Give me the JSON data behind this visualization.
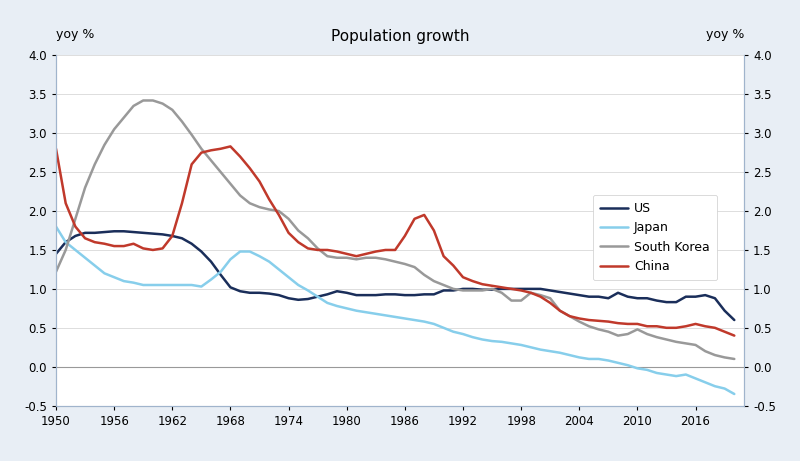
{
  "title": "Population growth",
  "ylabel_left": "yoy %",
  "ylabel_right": "yoy %",
  "ylim": [
    -0.5,
    4.0
  ],
  "yticks": [
    -0.5,
    0.0,
    0.5,
    1.0,
    1.5,
    2.0,
    2.5,
    3.0,
    3.5,
    4.0
  ],
  "xlim": [
    1950,
    2021
  ],
  "xticks": [
    1950,
    1956,
    1962,
    1968,
    1974,
    1980,
    1986,
    1992,
    1998,
    2004,
    2010,
    2016
  ],
  "background_color": "#e8eef5",
  "plot_bg_color": "#ffffff",
  "border_color": "#a0b4cc",
  "us": {
    "color": "#1a2e5a",
    "linewidth": 1.8,
    "label": "US",
    "years": [
      1950,
      1951,
      1952,
      1953,
      1954,
      1955,
      1956,
      1957,
      1958,
      1959,
      1960,
      1961,
      1962,
      1963,
      1964,
      1965,
      1966,
      1967,
      1968,
      1969,
      1970,
      1971,
      1972,
      1973,
      1974,
      1975,
      1976,
      1977,
      1978,
      1979,
      1980,
      1981,
      1982,
      1983,
      1984,
      1985,
      1986,
      1987,
      1988,
      1989,
      1990,
      1991,
      1992,
      1993,
      1994,
      1995,
      1996,
      1997,
      1998,
      1999,
      2000,
      2001,
      2002,
      2003,
      2004,
      2005,
      2006,
      2007,
      2008,
      2009,
      2010,
      2011,
      2012,
      2013,
      2014,
      2015,
      2016,
      2017,
      2018,
      2019,
      2020
    ],
    "values": [
      1.45,
      1.6,
      1.68,
      1.72,
      1.72,
      1.73,
      1.74,
      1.74,
      1.73,
      1.72,
      1.71,
      1.7,
      1.68,
      1.65,
      1.58,
      1.48,
      1.35,
      1.18,
      1.02,
      0.97,
      0.95,
      0.95,
      0.94,
      0.92,
      0.88,
      0.86,
      0.87,
      0.9,
      0.93,
      0.97,
      0.95,
      0.92,
      0.92,
      0.92,
      0.93,
      0.93,
      0.92,
      0.92,
      0.93,
      0.93,
      0.98,
      0.98,
      1.0,
      1.0,
      0.99,
      0.99,
      1.0,
      1.0,
      1.0,
      1.0,
      1.0,
      0.98,
      0.96,
      0.94,
      0.92,
      0.9,
      0.9,
      0.88,
      0.95,
      0.9,
      0.88,
      0.88,
      0.85,
      0.83,
      0.83,
      0.9,
      0.9,
      0.92,
      0.88,
      0.72,
      0.6
    ]
  },
  "japan": {
    "color": "#87ceeb",
    "linewidth": 1.8,
    "label": "Japan",
    "years": [
      1950,
      1951,
      1952,
      1953,
      1954,
      1955,
      1956,
      1957,
      1958,
      1959,
      1960,
      1961,
      1962,
      1963,
      1964,
      1965,
      1966,
      1967,
      1968,
      1969,
      1970,
      1971,
      1972,
      1973,
      1974,
      1975,
      1976,
      1977,
      1978,
      1979,
      1980,
      1981,
      1982,
      1983,
      1984,
      1985,
      1986,
      1987,
      1988,
      1989,
      1990,
      1991,
      1992,
      1993,
      1994,
      1995,
      1996,
      1997,
      1998,
      1999,
      2000,
      2001,
      2002,
      2003,
      2004,
      2005,
      2006,
      2007,
      2008,
      2009,
      2010,
      2011,
      2012,
      2013,
      2014,
      2015,
      2016,
      2017,
      2018,
      2019,
      2020
    ],
    "values": [
      1.8,
      1.6,
      1.5,
      1.4,
      1.3,
      1.2,
      1.15,
      1.1,
      1.08,
      1.05,
      1.05,
      1.05,
      1.05,
      1.05,
      1.05,
      1.03,
      1.12,
      1.22,
      1.38,
      1.48,
      1.48,
      1.42,
      1.35,
      1.25,
      1.15,
      1.05,
      0.98,
      0.9,
      0.82,
      0.78,
      0.75,
      0.72,
      0.7,
      0.68,
      0.66,
      0.64,
      0.62,
      0.6,
      0.58,
      0.55,
      0.5,
      0.45,
      0.42,
      0.38,
      0.35,
      0.33,
      0.32,
      0.3,
      0.28,
      0.25,
      0.22,
      0.2,
      0.18,
      0.15,
      0.12,
      0.1,
      0.1,
      0.08,
      0.05,
      0.02,
      -0.02,
      -0.04,
      -0.08,
      -0.1,
      -0.12,
      -0.1,
      -0.15,
      -0.2,
      -0.25,
      -0.28,
      -0.35
    ]
  },
  "south_korea": {
    "color": "#999999",
    "linewidth": 1.8,
    "label": "South Korea",
    "years": [
      1950,
      1951,
      1952,
      1953,
      1954,
      1955,
      1956,
      1957,
      1958,
      1959,
      1960,
      1961,
      1962,
      1963,
      1964,
      1965,
      1966,
      1967,
      1968,
      1969,
      1970,
      1971,
      1972,
      1973,
      1974,
      1975,
      1976,
      1977,
      1978,
      1979,
      1980,
      1981,
      1982,
      1983,
      1984,
      1985,
      1986,
      1987,
      1988,
      1989,
      1990,
      1991,
      1992,
      1993,
      1994,
      1995,
      1996,
      1997,
      1998,
      1999,
      2000,
      2001,
      2002,
      2003,
      2004,
      2005,
      2006,
      2007,
      2008,
      2009,
      2010,
      2011,
      2012,
      2013,
      2014,
      2015,
      2016,
      2017,
      2018,
      2019,
      2020
    ],
    "values": [
      1.22,
      1.5,
      1.9,
      2.3,
      2.6,
      2.85,
      3.05,
      3.2,
      3.35,
      3.42,
      3.42,
      3.38,
      3.3,
      3.15,
      2.98,
      2.8,
      2.65,
      2.5,
      2.35,
      2.2,
      2.1,
      2.05,
      2.02,
      2.0,
      1.9,
      1.75,
      1.65,
      1.52,
      1.42,
      1.4,
      1.4,
      1.38,
      1.4,
      1.4,
      1.38,
      1.35,
      1.32,
      1.28,
      1.18,
      1.1,
      1.05,
      1.0,
      0.98,
      0.98,
      0.98,
      1.0,
      0.95,
      0.85,
      0.85,
      0.95,
      0.92,
      0.88,
      0.72,
      0.65,
      0.58,
      0.52,
      0.48,
      0.45,
      0.4,
      0.42,
      0.48,
      0.42,
      0.38,
      0.35,
      0.32,
      0.3,
      0.28,
      0.2,
      0.15,
      0.12,
      0.1
    ]
  },
  "china": {
    "color": "#c0392b",
    "linewidth": 1.8,
    "label": "China",
    "years": [
      1950,
      1951,
      1952,
      1953,
      1954,
      1955,
      1956,
      1957,
      1958,
      1959,
      1960,
      1961,
      1962,
      1963,
      1964,
      1965,
      1966,
      1967,
      1968,
      1969,
      1970,
      1971,
      1972,
      1973,
      1974,
      1975,
      1976,
      1977,
      1978,
      1979,
      1980,
      1981,
      1982,
      1983,
      1984,
      1985,
      1986,
      1987,
      1988,
      1989,
      1990,
      1991,
      1992,
      1993,
      1994,
      1995,
      1996,
      1997,
      1998,
      1999,
      2000,
      2001,
      2002,
      2003,
      2004,
      2005,
      2006,
      2007,
      2008,
      2009,
      2010,
      2011,
      2012,
      2013,
      2014,
      2015,
      2016,
      2017,
      2018,
      2019,
      2020
    ],
    "values": [
      2.8,
      2.1,
      1.8,
      1.65,
      1.6,
      1.58,
      1.55,
      1.55,
      1.58,
      1.52,
      1.5,
      1.52,
      1.68,
      2.1,
      2.6,
      2.75,
      2.78,
      2.8,
      2.83,
      2.7,
      2.55,
      2.38,
      2.15,
      1.95,
      1.72,
      1.6,
      1.52,
      1.5,
      1.5,
      1.48,
      1.45,
      1.42,
      1.45,
      1.48,
      1.5,
      1.5,
      1.68,
      1.9,
      1.95,
      1.75,
      1.42,
      1.3,
      1.15,
      1.1,
      1.06,
      1.04,
      1.02,
      1.0,
      0.98,
      0.95,
      0.9,
      0.82,
      0.72,
      0.65,
      0.62,
      0.6,
      0.59,
      0.58,
      0.56,
      0.55,
      0.55,
      0.52,
      0.52,
      0.5,
      0.5,
      0.52,
      0.55,
      0.52,
      0.5,
      0.45,
      0.4
    ]
  }
}
